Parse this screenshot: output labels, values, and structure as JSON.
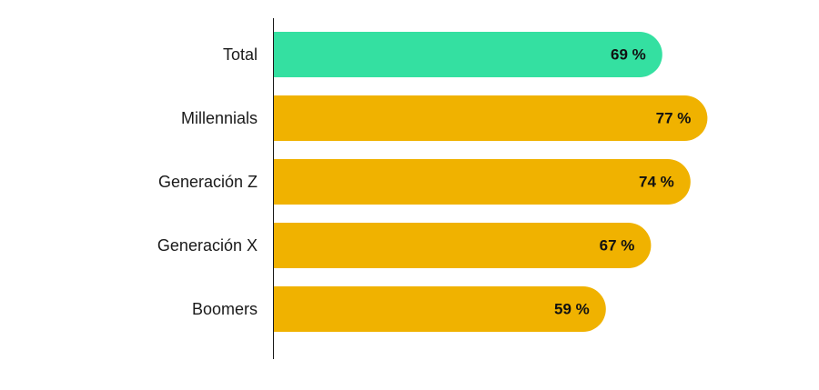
{
  "chart_data": {
    "type": "bar",
    "orientation": "horizontal",
    "categories": [
      "Total",
      "Millennials",
      "Generación Z",
      "Generación X",
      "Boomers"
    ],
    "values": [
      69,
      77,
      74,
      67,
      59
    ],
    "value_labels": [
      "69 %",
      "77 %",
      "74 %",
      "67 %",
      "59 %"
    ],
    "colors": [
      "#34E0A1",
      "#F0B200",
      "#F0B200",
      "#F0B200",
      "#F0B200"
    ],
    "title": "",
    "xlabel": "",
    "ylabel": "",
    "xlim": [
      0,
      100
    ],
    "grid": false,
    "legend": "none"
  },
  "colors": {
    "axis": "#1a1a1a",
    "highlight": "#34E0A1",
    "bar": "#F0B200"
  }
}
